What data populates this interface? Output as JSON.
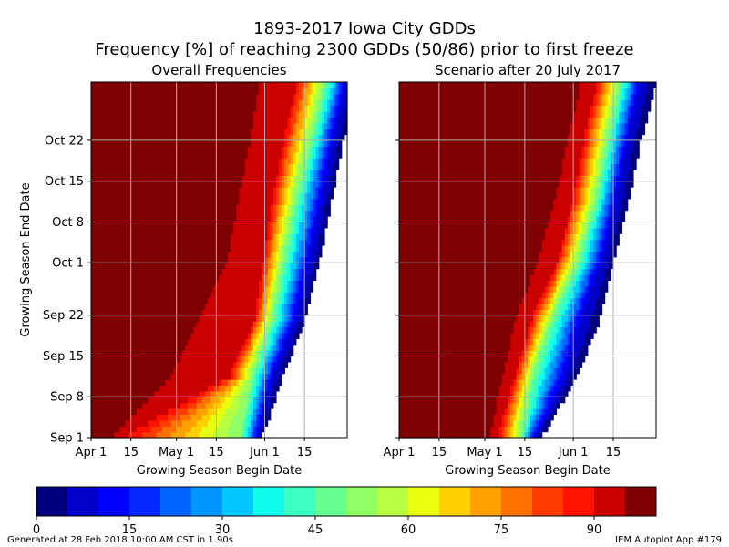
{
  "figure": {
    "title_line1": "1893-2017 Iowa City GDDs",
    "title_line2": "Frequency [%] of reaching 2300 GDDs (50/86) prior to first freeze",
    "footer_left": "Generated at 28 Feb 2018 10:00 AM CST in 1.90s",
    "footer_right": "IEM Autoplot App #179"
  },
  "chart_data": [
    {
      "type": "heatmap",
      "title": "Overall Frequencies",
      "xlabel": "Growing Season Begin Date",
      "ylabel": "Growing Season End Date",
      "x_ticks": [
        "Apr 1",
        "15",
        "May 1",
        "15",
        "Jun 1",
        "15"
      ],
      "y_ticks": [
        "Sep 1",
        "Sep 8",
        "Sep 15",
        "Sep 22",
        "Oct 1",
        "Oct 8",
        "Oct 15",
        "Oct 22"
      ],
      "x_start": "Apr 1",
      "x_end": "Jun 29",
      "y_start": "Sep 1",
      "y_end": "Oct 31",
      "grid": true,
      "contour_days": {
        "note": "begin-day offset from Apr 1 at which frequency falls to each level, by end-day offset from Sep 1",
        "end_offsets": [
          0,
          10,
          20,
          30,
          40,
          50,
          61
        ],
        "pct_90": [
          12,
          48,
          57,
          60,
          63,
          67,
          72
        ],
        "pct_50": [
          52,
          56,
          63,
          67,
          71,
          76,
          82
        ],
        "pct_10": [
          58,
          63,
          71,
          76,
          80,
          84,
          89
        ],
        "pct_0": [
          60,
          67,
          75,
          80,
          84,
          88,
          94
        ],
        "pct_98": [
          5,
          15,
          26,
          40,
          44,
          48,
          51
        ]
      }
    },
    {
      "type": "heatmap",
      "title": "Scenario after 20 July 2017",
      "xlabel": "Growing Season Begin Date",
      "ylabel": "",
      "x_ticks": [
        "Apr 1",
        "15",
        "May 1",
        "15",
        "Jun 1",
        "15"
      ],
      "y_ticks": [],
      "x_start": "Apr 1",
      "x_end": "Jun 29",
      "y_start": "Sep 1",
      "y_end": "Oct 31",
      "grid": true,
      "contour_days": {
        "note": "begin-day offset from Apr 1 at which frequency falls to each level, by end-day offset from Sep 1",
        "end_offsets": [
          0,
          10,
          20,
          30,
          40,
          50,
          61
        ],
        "pct_90": [
          34,
          40,
          46,
          55,
          60,
          64,
          69
        ],
        "pct_50": [
          42,
          46,
          53,
          62,
          68,
          72,
          77
        ],
        "pct_10": [
          47,
          57,
          63,
          70,
          75,
          79,
          84
        ],
        "pct_0": [
          50,
          62,
          70,
          75,
          80,
          84,
          90
        ],
        "pct_98": [
          30,
          33,
          37,
          44,
          50,
          55,
          60
        ]
      }
    }
  ],
  "colorbar": {
    "ticks": [
      "0",
      "15",
      "30",
      "45",
      "60",
      "75",
      "90"
    ],
    "tick_values": [
      0,
      15,
      30,
      45,
      60,
      75,
      90
    ],
    "min": 0,
    "max": 100,
    "bins": 20,
    "colors": [
      "#00007f",
      "#0000c8",
      "#0000ff",
      "#0028ff",
      "#0064ff",
      "#0096ff",
      "#00c8ff",
      "#12fced",
      "#3cffc3",
      "#66ff91",
      "#91ff66",
      "#b6ff41",
      "#e8ff0f",
      "#ffd000",
      "#ffa100",
      "#ff7100",
      "#ff3b00",
      "#ff1300",
      "#ca0000",
      "#7f0000"
    ]
  }
}
